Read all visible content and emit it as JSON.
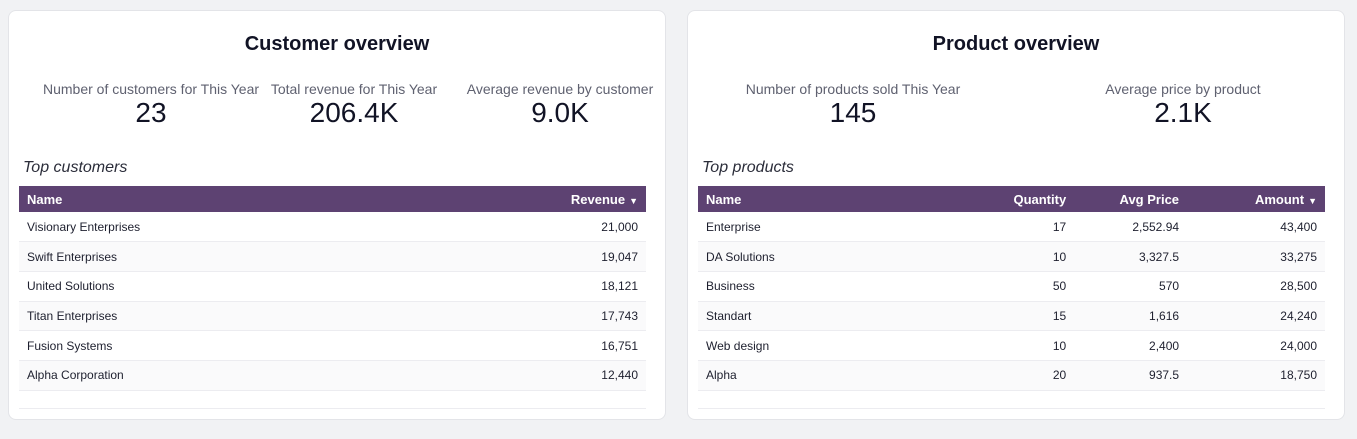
{
  "customer_overview": {
    "title": "Customer overview",
    "kpis": [
      {
        "label": "Number of customers for This Year",
        "value": "23"
      },
      {
        "label": "Total revenue for This Year",
        "value": "206.4K"
      },
      {
        "label": "Average revenue by customer",
        "value": "9.0K"
      }
    ],
    "table_title": "Top customers",
    "columns": [
      "Name",
      "Revenue"
    ],
    "sort_indicator": "▼",
    "rows": [
      {
        "name": "Visionary Enterprises",
        "revenue": "21,000"
      },
      {
        "name": "Swift Enterprises",
        "revenue": "19,047"
      },
      {
        "name": "United Solutions",
        "revenue": "18,121"
      },
      {
        "name": "Titan Enterprises",
        "revenue": "17,743"
      },
      {
        "name": "Fusion Systems",
        "revenue": "16,751"
      },
      {
        "name": "Alpha Corporation",
        "revenue": "12,440"
      }
    ]
  },
  "product_overview": {
    "title": "Product overview",
    "kpis": [
      {
        "label": "Number of products sold This Year",
        "value": "145"
      },
      {
        "label": "Average price by product",
        "value": "2.1K"
      }
    ],
    "table_title": "Top products",
    "columns": [
      "Name",
      "Quantity",
      "Avg Price",
      "Amount"
    ],
    "sort_indicator": "▼",
    "rows": [
      {
        "name": "Enterprise",
        "quantity": "17",
        "avg_price": "2,552.94",
        "amount": "43,400"
      },
      {
        "name": "DA Solutions",
        "quantity": "10",
        "avg_price": "3,327.5",
        "amount": "33,275"
      },
      {
        "name": "Business",
        "quantity": "50",
        "avg_price": "570",
        "amount": "28,500"
      },
      {
        "name": "Standart",
        "quantity": "15",
        "avg_price": "1,616",
        "amount": "24,240"
      },
      {
        "name": "Web design",
        "quantity": "10",
        "avg_price": "2,400",
        "amount": "24,000"
      },
      {
        "name": "Alpha",
        "quantity": "20",
        "avg_price": "937.5",
        "amount": "18,750"
      }
    ]
  },
  "colors": {
    "header_bg": "#5d4272",
    "page_bg": "#f1f2f4"
  }
}
